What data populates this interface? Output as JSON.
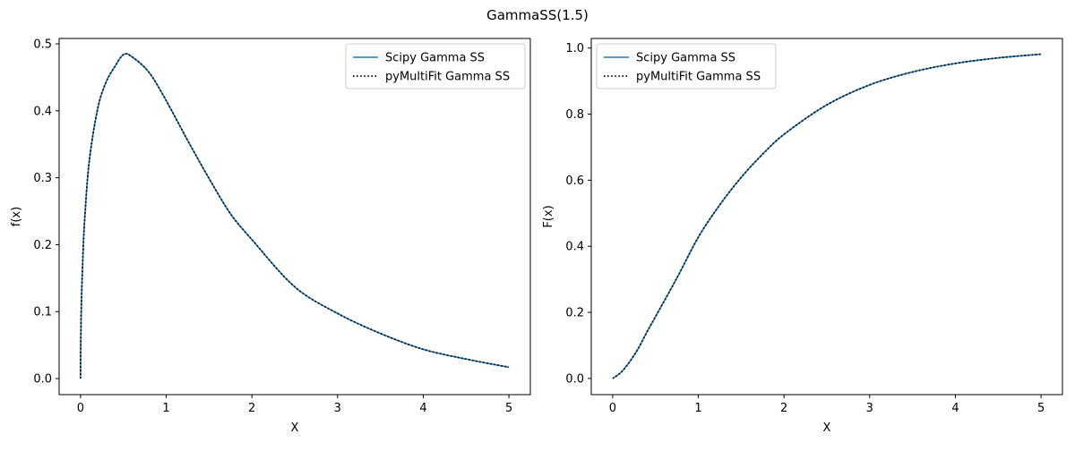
{
  "figure": {
    "suptitle": "GammaSS(1.5)"
  },
  "chart_data": [
    {
      "type": "line",
      "title": "",
      "xlabel": "X",
      "ylabel": "f(x)",
      "xlim": [
        -0.25,
        5.25
      ],
      "ylim": [
        -0.024,
        0.508
      ],
      "xticks": [
        0,
        1,
        2,
        3,
        4,
        5
      ],
      "yticks": [
        0.0,
        0.1,
        0.2,
        0.3,
        0.4,
        0.5
      ],
      "ytick_labels": [
        "0.0",
        "0.1",
        "0.2",
        "0.3",
        "0.4",
        "0.5"
      ],
      "grid": false,
      "legend": "top-right",
      "x": [
        0.0,
        0.001,
        0.01,
        0.03,
        0.05,
        0.1,
        0.2,
        0.3,
        0.4,
        0.5,
        0.6,
        0.8,
        1.0,
        1.25,
        1.5,
        1.75,
        2.0,
        2.5,
        3.0,
        3.5,
        4.0,
        4.5,
        5.0
      ],
      "series": [
        {
          "name": "Scipy Gamma SS",
          "style": "solid",
          "color": "#1f77b4",
          "y": [
            0.0,
            0.0357,
            0.1123,
            0.1911,
            0.2412,
            0.3228,
            0.4032,
            0.4434,
            0.4659,
            0.4839,
            0.4807,
            0.4573,
            0.4151,
            0.3558,
            0.2989,
            0.2462,
            0.2076,
            0.137,
            0.0973,
            0.0674,
            0.0437,
            0.0291,
            0.0169
          ]
        },
        {
          "name": "pyMultiFit Gamma SS",
          "style": "dotted",
          "color": "#000000",
          "y": [
            0.0,
            0.0357,
            0.1123,
            0.1911,
            0.2412,
            0.3228,
            0.4032,
            0.4434,
            0.4659,
            0.4839,
            0.4807,
            0.4573,
            0.4151,
            0.3558,
            0.2989,
            0.2462,
            0.2076,
            0.137,
            0.0973,
            0.0674,
            0.0437,
            0.0291,
            0.0169
          ]
        }
      ]
    },
    {
      "type": "line",
      "title": "",
      "xlabel": "X",
      "ylabel": "F(x)",
      "xlim": [
        -0.25,
        5.25
      ],
      "ylim": [
        -0.049,
        1.029
      ],
      "xticks": [
        0,
        1,
        2,
        3,
        4,
        5
      ],
      "yticks": [
        0.0,
        0.2,
        0.4,
        0.6,
        0.8,
        1.0
      ],
      "ytick_labels": [
        "0.0",
        "0.2",
        "0.4",
        "0.6",
        "0.8",
        "1.0"
      ],
      "grid": false,
      "legend": "top-left",
      "x": [
        0.0,
        0.1,
        0.2,
        0.3,
        0.4,
        0.5,
        0.75,
        1.0,
        1.25,
        1.5,
        1.75,
        2.0,
        2.5,
        3.0,
        3.5,
        4.0,
        4.5,
        5.0
      ],
      "series": [
        {
          "name": "Scipy Gamma SS",
          "style": "solid",
          "color": "#1f77b4",
          "y": [
            0.0,
            0.019,
            0.0511,
            0.0913,
            0.1405,
            0.187,
            0.304,
            0.4276,
            0.5252,
            0.6086,
            0.6786,
            0.7389,
            0.828,
            0.8885,
            0.9276,
            0.9535,
            0.9703,
            0.9814
          ]
        },
        {
          "name": "pyMultiFit Gamma SS",
          "style": "dotted",
          "color": "#000000",
          "y": [
            0.0,
            0.019,
            0.0511,
            0.0913,
            0.1405,
            0.187,
            0.304,
            0.4276,
            0.5252,
            0.6086,
            0.6786,
            0.7389,
            0.828,
            0.8885,
            0.9276,
            0.9535,
            0.9703,
            0.9814
          ]
        }
      ]
    }
  ]
}
